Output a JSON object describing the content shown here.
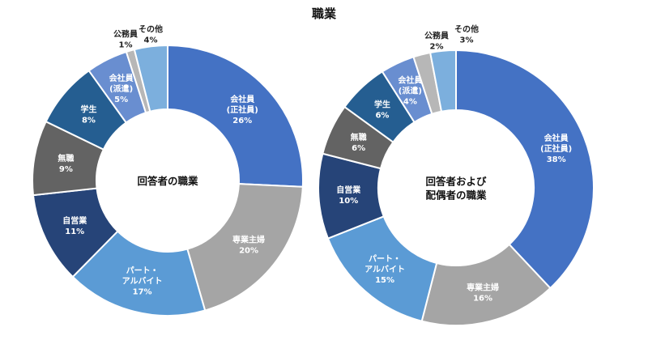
{
  "title": "職業",
  "chart_data": [
    {
      "type": "pie",
      "variant": "donut",
      "center_label": [
        "回答者の職業"
      ],
      "slices": [
        {
          "name": "会社員(正社員)",
          "label_lines": [
            "会社員",
            "(正社員)"
          ],
          "value": 26,
          "value_label": "26%",
          "color": "#4472C4"
        },
        {
          "name": "専業主婦",
          "label_lines": [
            "専業主婦"
          ],
          "value": 20,
          "value_label": "20%",
          "color": "#A5A5A5"
        },
        {
          "name": "パート・アルバイト",
          "label_lines": [
            "パート・",
            "アルバイト"
          ],
          "value": 17,
          "value_label": "17%",
          "color": "#5B9BD5"
        },
        {
          "name": "自営業",
          "label_lines": [
            "自営業"
          ],
          "value": 11,
          "value_label": "11%",
          "color": "#264478"
        },
        {
          "name": "無職",
          "label_lines": [
            "無職"
          ],
          "value": 9,
          "value_label": "9%",
          "color": "#636363"
        },
        {
          "name": "学生",
          "label_lines": [
            "学生"
          ],
          "value": 8,
          "value_label": "8%",
          "color": "#255E91"
        },
        {
          "name": "会社員(派遣)",
          "label_lines": [
            "会社員",
            "(派遣)"
          ],
          "value": 5,
          "value_label": "5%",
          "color": "#698ED0"
        },
        {
          "name": "公務員",
          "label_lines": [
            "公務員"
          ],
          "value": 1,
          "value_label": "1%",
          "color": "#B7B7B7"
        },
        {
          "name": "その他",
          "label_lines": [
            "その他"
          ],
          "value": 4,
          "value_label": "4%",
          "color": "#7CAFDD"
        }
      ]
    },
    {
      "type": "pie",
      "variant": "donut",
      "center_label": [
        "回答者および",
        "配偶者の職業"
      ],
      "slices": [
        {
          "name": "会社員(正社員)",
          "label_lines": [
            "会社員",
            "(正社員)"
          ],
          "value": 38,
          "value_label": "38%",
          "color": "#4472C4"
        },
        {
          "name": "専業主婦",
          "label_lines": [
            "専業主婦"
          ],
          "value": 16,
          "value_label": "16%",
          "color": "#A5A5A5"
        },
        {
          "name": "パート・アルバイト",
          "label_lines": [
            "パート・",
            "アルバイト"
          ],
          "value": 15,
          "value_label": "15%",
          "color": "#5B9BD5"
        },
        {
          "name": "自営業",
          "label_lines": [
            "自営業"
          ],
          "value": 10,
          "value_label": "10%",
          "color": "#264478"
        },
        {
          "name": "無職",
          "label_lines": [
            "無職"
          ],
          "value": 6,
          "value_label": "6%",
          "color": "#636363"
        },
        {
          "name": "学生",
          "label_lines": [
            "学生"
          ],
          "value": 6,
          "value_label": "6%",
          "color": "#255E91"
        },
        {
          "name": "会社員(派遣)",
          "label_lines": [
            "会社員",
            "(派遣)"
          ],
          "value": 4,
          "value_label": "4%",
          "color": "#698ED0"
        },
        {
          "name": "公務員",
          "label_lines": [
            "公務員"
          ],
          "value": 2,
          "value_label": "2%",
          "color": "#B7B7B7"
        },
        {
          "name": "その他",
          "label_lines": [
            "その他"
          ],
          "value": 3,
          "value_label": "3%",
          "color": "#7CAFDD"
        }
      ]
    }
  ]
}
